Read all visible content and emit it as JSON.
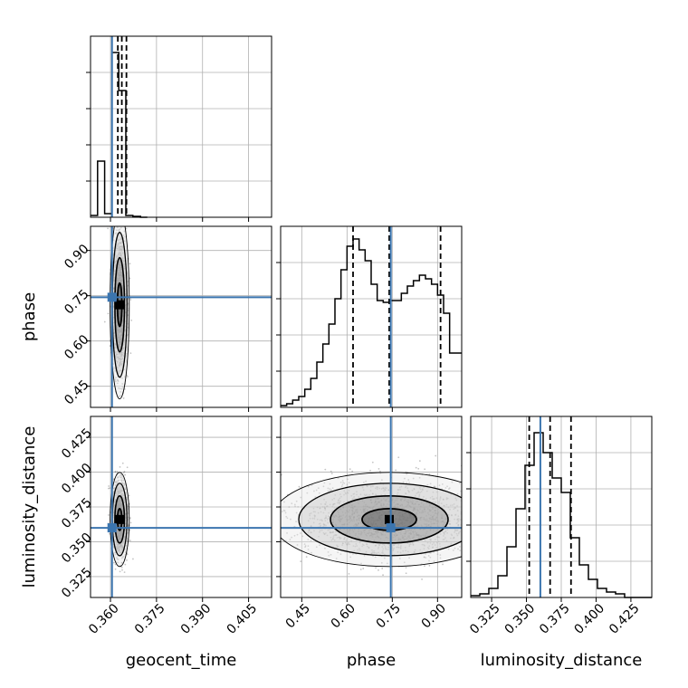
{
  "colors": {
    "truth": "#3b75af",
    "hist": "#000000",
    "grid": "#b0b0b0"
  },
  "chart_data": [
    {
      "type": "bar",
      "panel": "hist_geocent_time",
      "xlabel": "geocent_time",
      "xticks": [
        "0.360",
        "0.375",
        "0.390",
        "0.405"
      ],
      "xtick_values": [
        0.36,
        0.375,
        0.39,
        0.405
      ],
      "xlim": [
        0.3535,
        0.4125
      ],
      "ylim": [
        0,
        1
      ],
      "bin_edges": [
        0.3535,
        0.3558,
        0.3581,
        0.3605,
        0.3627,
        0.365,
        0.3673,
        0.3698,
        0.372
      ],
      "values": [
        0.01,
        0.31,
        0.02,
        0.91,
        0.7,
        0.01,
        0.005,
        0.0
      ],
      "quantiles": [
        0.3624,
        0.3637,
        0.3652
      ],
      "truth": 0.3605,
      "grid": true
    },
    {
      "type": "bar",
      "panel": "hist_phase",
      "xlabel": "phase",
      "xticks": [
        "0.45",
        "0.60",
        "0.75",
        "0.90"
      ],
      "xtick_values": [
        0.45,
        0.6,
        0.75,
        0.9
      ],
      "xlim": [
        0.38,
        0.98
      ],
      "ylim": [
        0,
        1
      ],
      "bin_edges": [
        0.38,
        0.4,
        0.42,
        0.44,
        0.46,
        0.48,
        0.5,
        0.52,
        0.54,
        0.56,
        0.58,
        0.6,
        0.62,
        0.64,
        0.66,
        0.68,
        0.7,
        0.72,
        0.74,
        0.76,
        0.78,
        0.8,
        0.82,
        0.84,
        0.86,
        0.88,
        0.9,
        0.92,
        0.94,
        0.96,
        0.98
      ],
      "values": [
        0.01,
        0.02,
        0.04,
        0.06,
        0.1,
        0.16,
        0.25,
        0.35,
        0.46,
        0.6,
        0.76,
        0.89,
        0.93,
        0.87,
        0.81,
        0.68,
        0.59,
        0.58,
        0.59,
        0.59,
        0.63,
        0.67,
        0.7,
        0.73,
        0.71,
        0.68,
        0.62,
        0.52,
        0.3,
        0.3
      ],
      "quantiles": [
        0.62,
        0.74,
        0.91
      ],
      "truth": 0.745,
      "grid": true
    },
    {
      "type": "bar",
      "panel": "hist_luminosity_distance",
      "xlabel": "luminosity_distance",
      "xticks": [
        "0.325",
        "0.350",
        "0.375",
        "0.400",
        "0.425"
      ],
      "xtick_values": [
        0.325,
        0.35,
        0.375,
        0.4,
        0.425
      ],
      "xlim": [
        0.31,
        0.44
      ],
      "ylim": [
        0,
        1
      ],
      "bin_edges": [
        0.31,
        0.3165,
        0.323,
        0.3295,
        0.336,
        0.3425,
        0.349,
        0.3555,
        0.362,
        0.3685,
        0.375,
        0.3815,
        0.388,
        0.3945,
        0.401,
        0.4075,
        0.414,
        0.4205,
        0.427,
        0.4335,
        0.44
      ],
      "values": [
        0.01,
        0.02,
        0.05,
        0.12,
        0.28,
        0.49,
        0.73,
        0.91,
        0.8,
        0.66,
        0.58,
        0.33,
        0.18,
        0.1,
        0.05,
        0.03,
        0.02,
        0.0,
        0.0,
        0.0
      ],
      "quantiles": [
        0.352,
        0.367,
        0.382
      ],
      "truth": 0.36,
      "grid": true
    },
    {
      "type": "scatter",
      "panel": "phase_vs_geocent_time",
      "ylabel": "phase",
      "xlim": [
        0.3535,
        0.4125
      ],
      "ylim": [
        0.38,
        0.98
      ],
      "yticks": [
        "0.45",
        "0.60",
        "0.75",
        "0.90"
      ],
      "ytick_values": [
        0.45,
        0.6,
        0.75,
        0.9
      ],
      "truth": {
        "x": 0.3605,
        "y": 0.745
      },
      "cloud": {
        "x_center": 0.363,
        "x_spread": 0.0012,
        "y_center": 0.72,
        "y_spread": 0.12
      },
      "grid": true
    },
    {
      "type": "scatter",
      "panel": "luminosity_distance_vs_geocent_time",
      "ylabel": "luminosity_distance",
      "xlim": [
        0.3535,
        0.4125
      ],
      "ylim": [
        0.31,
        0.44
      ],
      "yticks": [
        "0.325",
        "0.350",
        "0.375",
        "0.400",
        "0.425"
      ],
      "ytick_values": [
        0.325,
        0.35,
        0.375,
        0.4,
        0.425
      ],
      "truth": {
        "x": 0.3605,
        "y": 0.36
      },
      "cloud": {
        "x_center": 0.363,
        "x_spread": 0.0012,
        "y_center": 0.366,
        "y_spread": 0.013
      },
      "grid": true
    },
    {
      "type": "scatter",
      "panel": "luminosity_distance_vs_phase",
      "xlim": [
        0.38,
        0.98
      ],
      "ylim": [
        0.31,
        0.44
      ],
      "truth": {
        "x": 0.745,
        "y": 0.36
      },
      "cloud": {
        "x_center": 0.74,
        "x_spread": 0.15,
        "y_center": 0.366,
        "y_spread": 0.013
      },
      "grid": true
    }
  ]
}
